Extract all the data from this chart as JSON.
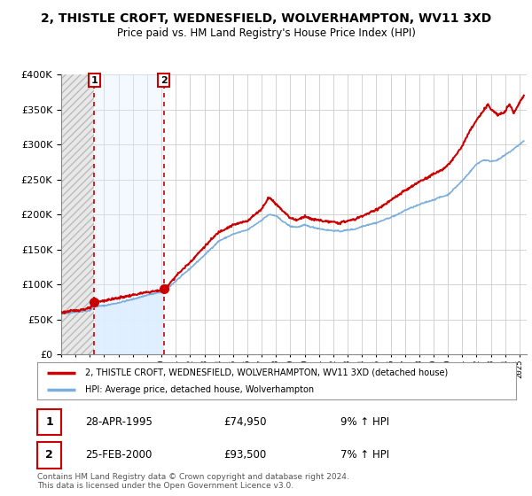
{
  "title": "2, THISTLE CROFT, WEDNESFIELD, WOLVERHAMPTON, WV11 3XD",
  "subtitle": "Price paid vs. HM Land Registry's House Price Index (HPI)",
  "ylim": [
    0,
    400000
  ],
  "yticks": [
    0,
    50000,
    100000,
    150000,
    200000,
    250000,
    300000,
    350000,
    400000
  ],
  "ytick_labels": [
    "£0",
    "£50K",
    "£100K",
    "£150K",
    "£200K",
    "£250K",
    "£300K",
    "£350K",
    "£400K"
  ],
  "xlim_start": 1993.0,
  "xlim_end": 2025.5,
  "sale1_year": 1995.32,
  "sale1_price": 74950,
  "sale2_year": 2000.15,
  "sale2_price": 93500,
  "sale1_date": "28-APR-1995",
  "sale1_hpi_pct": "9% ↑ HPI",
  "sale2_date": "25-FEB-2000",
  "sale2_hpi_pct": "7% ↑ HPI",
  "property_line_color": "#cc0000",
  "hpi_line_color": "#7aaedc",
  "hpi_fill_color": "#ddeeff",
  "vline_color": "#cc0000",
  "legend_property_label": "2, THISTLE CROFT, WEDNESFIELD, WOLVERHAMPTON, WV11 3XD (detached house)",
  "legend_hpi_label": "HPI: Average price, detached house, Wolverhampton",
  "footnote": "Contains HM Land Registry data © Crown copyright and database right 2024.\nThis data is licensed under the Open Government Licence v3.0.",
  "bg_color": "#ffffff",
  "plot_bg_color": "#ffffff",
  "grid_color": "#cccccc"
}
